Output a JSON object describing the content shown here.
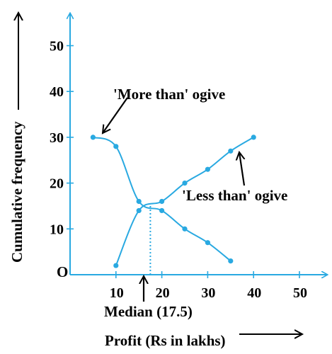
{
  "chart_data": {
    "type": "line",
    "xlabel": "Profit (Rs in lakhs)",
    "ylabel": "Cumulative frequency",
    "origin_label": "O",
    "xlim": [
      0,
      56
    ],
    "ylim": [
      0,
      57
    ],
    "x_ticks": [
      10,
      20,
      30,
      40,
      50
    ],
    "y_ticks": [
      10,
      20,
      30,
      40,
      50
    ],
    "grid": false,
    "colors": {
      "curve": "#29a9e1",
      "axis": "#29a9e1",
      "text": "#000000",
      "arrow": "#000000"
    },
    "series": [
      {
        "name": "'More than' ogive",
        "x": [
          5,
          10,
          15,
          20,
          25,
          30,
          35
        ],
        "y": [
          30,
          28,
          16,
          14,
          10,
          7,
          3
        ]
      },
      {
        "name": "'Less than' ogive",
        "x": [
          10,
          15,
          20,
          25,
          30,
          35,
          40
        ],
        "y": [
          2,
          14,
          16,
          20,
          23,
          27,
          30
        ]
      }
    ],
    "median": {
      "label": "Median (17.5)",
      "x": 17.5,
      "y": 15
    }
  }
}
